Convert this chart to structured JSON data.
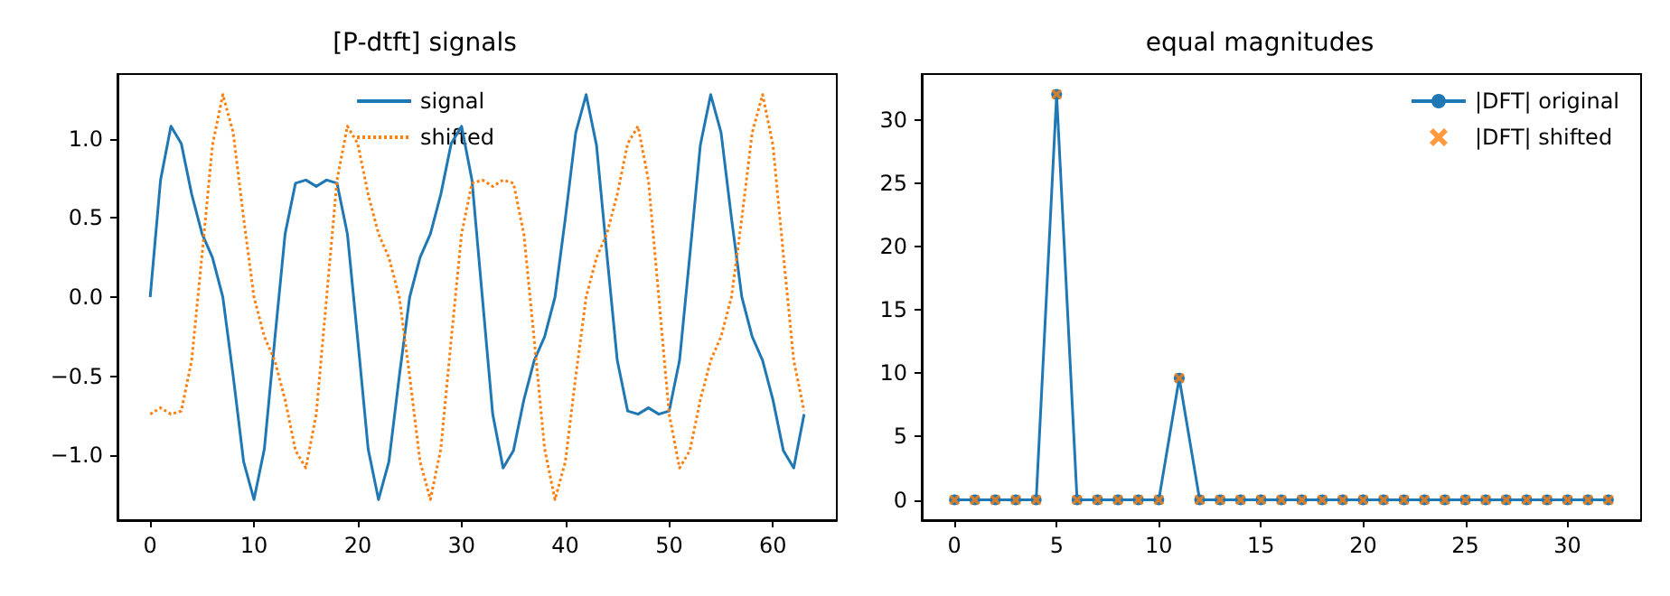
{
  "chart_data": [
    {
      "type": "line",
      "title": "[P-dtft] signals",
      "x": [
        0,
        1,
        2,
        3,
        4,
        5,
        6,
        7,
        8,
        9,
        10,
        11,
        12,
        13,
        14,
        15,
        16,
        17,
        18,
        19,
        20,
        21,
        22,
        23,
        24,
        25,
        26,
        27,
        28,
        29,
        30,
        31,
        32,
        33,
        34,
        35,
        36,
        37,
        38,
        39,
        40,
        41,
        42,
        43,
        44,
        45,
        46,
        47,
        48,
        49,
        50,
        51,
        52,
        53,
        54,
        55,
        56,
        57,
        58,
        59,
        60,
        61,
        62,
        63
      ],
      "series": [
        {
          "name": "signal",
          "color": "#1f77b4",
          "line_style": "solid",
          "values": [
            0,
            0.74,
            1.08,
            0.97,
            0.65,
            0.4,
            0.25,
            0.0,
            -0.5,
            -1.04,
            -1.28,
            -0.96,
            -0.27,
            0.4,
            0.72,
            0.74,
            0.7,
            0.74,
            0.72,
            0.4,
            -0.27,
            -0.96,
            -1.28,
            -1.04,
            -0.5,
            0.0,
            0.25,
            0.4,
            0.65,
            0.97,
            1.08,
            0.74,
            0,
            -0.74,
            -1.08,
            -0.97,
            -0.65,
            -0.4,
            -0.25,
            0.0,
            0.5,
            1.04,
            1.28,
            0.96,
            0.27,
            -0.4,
            -0.72,
            -0.74,
            -0.7,
            -0.74,
            -0.72,
            -0.4,
            0.27,
            0.96,
            1.28,
            1.04,
            0.5,
            0.0,
            -0.25,
            -0.4,
            -0.65,
            -0.97,
            -1.08,
            -0.74
          ]
        },
        {
          "name": "shifted",
          "color": "#ff7f0e",
          "line_style": "dotted",
          "values": [
            -0.74,
            -0.7,
            -0.74,
            -0.72,
            -0.4,
            0.27,
            0.96,
            1.28,
            1.04,
            0.5,
            0.0,
            -0.25,
            -0.4,
            -0.65,
            -0.97,
            -1.08,
            -0.74,
            0,
            0.74,
            1.08,
            0.97,
            0.65,
            0.4,
            0.25,
            0.0,
            -0.5,
            -1.04,
            -1.28,
            -0.96,
            -0.27,
            0.4,
            0.72,
            0.74,
            0.7,
            0.74,
            0.72,
            0.4,
            -0.27,
            -0.96,
            -1.28,
            -1.04,
            -0.5,
            0.0,
            0.25,
            0.4,
            0.65,
            0.97,
            1.08,
            0.74,
            0,
            -0.74,
            -1.08,
            -0.97,
            -0.65,
            -0.4,
            -0.25,
            0.0,
            0.5,
            1.04,
            1.28,
            0.96,
            0.27,
            -0.4,
            -0.72
          ]
        }
      ],
      "xlim": [
        -3.15,
        66.15
      ],
      "xticks": [
        0,
        10,
        20,
        30,
        40,
        50,
        60
      ],
      "ylim": [
        -1.41,
        1.41
      ],
      "yticks": [
        {
          "value": -1,
          "label": "−1.0"
        },
        {
          "value": -0.5,
          "label": "−0.5"
        },
        {
          "value": 0,
          "label": "0.0"
        },
        {
          "value": 0.5,
          "label": "0.5"
        },
        {
          "value": 1,
          "label": "1.0"
        }
      ],
      "marker": "none",
      "grid": false,
      "legend": "top"
    },
    {
      "type": "line",
      "title": "equal magnitudes",
      "x": [
        0,
        1,
        2,
        3,
        4,
        5,
        6,
        7,
        8,
        9,
        10,
        11,
        12,
        13,
        14,
        15,
        16,
        17,
        18,
        19,
        20,
        21,
        22,
        23,
        24,
        25,
        26,
        27,
        28,
        29,
        30,
        31,
        32
      ],
      "series": [
        {
          "name": "|DFT| original",
          "type": "line",
          "marker": "circle",
          "color": "#1f77b4",
          "values": [
            0,
            0,
            0,
            0,
            0,
            32,
            0,
            0,
            0,
            0,
            0,
            9.6,
            0,
            0,
            0,
            0,
            0,
            0,
            0,
            0,
            0,
            0,
            0,
            0,
            0,
            0,
            0,
            0,
            0,
            0,
            0,
            0,
            0
          ]
        },
        {
          "name": "|DFT| shifted",
          "type": "scatter",
          "marker": "cross",
          "color": "#ff7f0e",
          "values": [
            0,
            0,
            0,
            0,
            0,
            32,
            0,
            0,
            0,
            0,
            0,
            9.6,
            0,
            0,
            0,
            0,
            0,
            0,
            0,
            0,
            0,
            0,
            0,
            0,
            0,
            0,
            0,
            0,
            0,
            0,
            0,
            0,
            0
          ]
        }
      ],
      "xlim": [
        -1.6,
        33.6
      ],
      "xticks": [
        0,
        5,
        10,
        15,
        20,
        25,
        30
      ],
      "ylim": [
        -1.6,
        33.6
      ],
      "yticks": [
        0,
        5,
        10,
        15,
        20,
        25,
        30
      ],
      "grid": false,
      "legend": "top right"
    }
  ]
}
